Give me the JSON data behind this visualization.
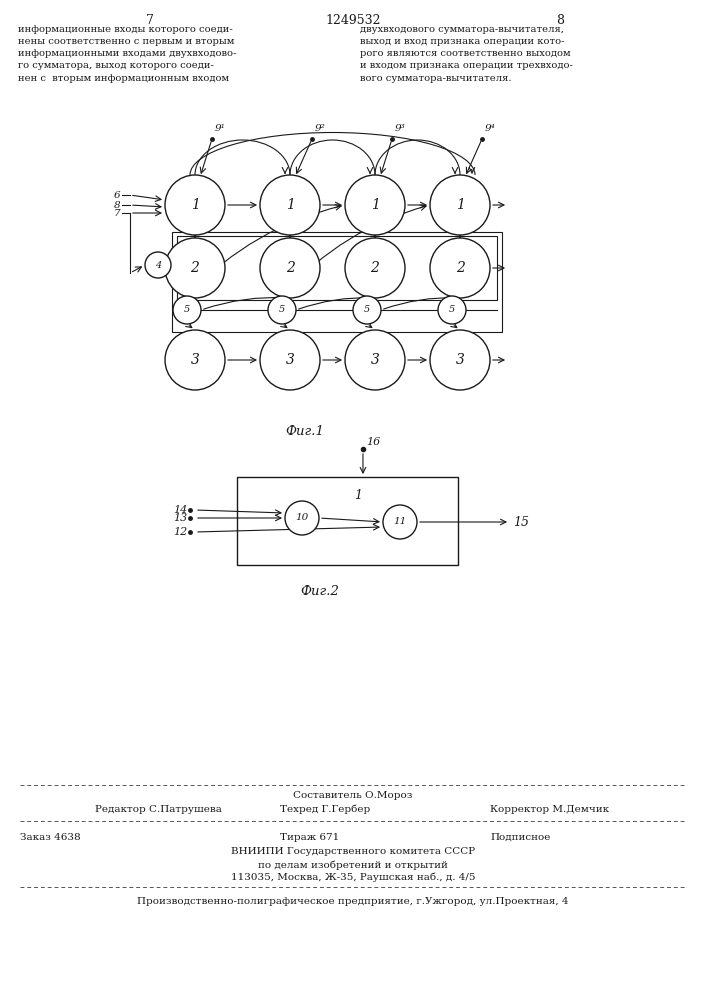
{
  "page_numbers": [
    "7",
    "1249532",
    "8"
  ],
  "text_left": "информационные входы которого соеди-\nнены соответственно с первым и вторым\nинформационными входами двухвходово-\nго сумматора, выход которого соеди-\nнен с  вторым информационным входом",
  "text_right": "двухвходового сумматора-вычитателя,\nвыход и вход признака операции кото-\nрого являются соответственно выходом\nи входом признака операции трехвходо-\nвого сумматора-вычитателя.",
  "fig1_label": "Фиг.1",
  "fig2_label": "Фиг.2",
  "footer_line1": "Составитель О.Мороз",
  "footer_editor": "Редактор С.Патрушева",
  "footer_techred": "Техред Г.Гербер",
  "footer_corrector": "Корректор М.Демчик",
  "footer_order": "Заказ 4638",
  "footer_tirazh": "Тираж 671",
  "footer_podpisnoe": "Подписное",
  "footer_vniip1": "ВНИИПИ Государственного комитета СССР",
  "footer_vniip2": "по делам изобретений и открытий",
  "footer_vniip3": "113035, Москва, Ж-35, Раушская наб., д. 4/5",
  "footer_prod": "Производственно-полиграфическое предприятие, г.Ужгород, ул.Проектная, 4",
  "bg_color": "#ffffff"
}
